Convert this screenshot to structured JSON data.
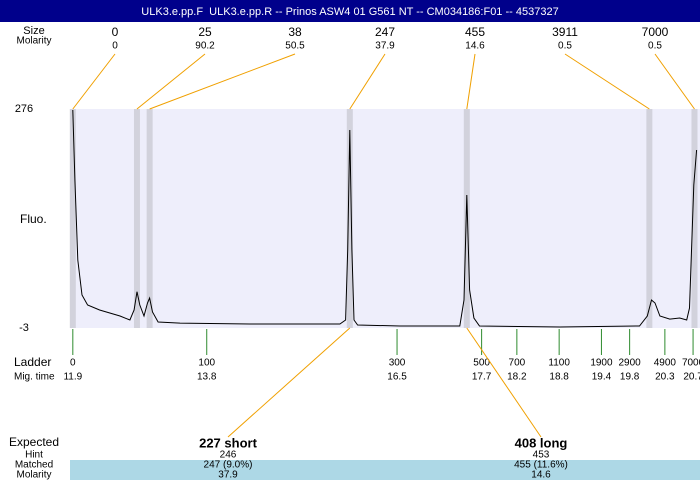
{
  "header": {
    "title": "ULK3.e.pp.F  ULK3.e.pp.R -- Prinos ASW4 01 G561 NT -- CM034186:F01 -- 4537327"
  },
  "chart_data": {
    "type": "line",
    "y_label": "Fluo.",
    "ylim": [
      -3,
      276
    ],
    "yticks": [
      276,
      -3
    ],
    "xlim": [
      11.86,
      20.77
    ],
    "peak_row_labels": [
      "Size",
      "Molarity"
    ],
    "peaks": {
      "size": [
        0,
        25,
        38,
        247,
        455,
        3911,
        7000
      ],
      "molarity": [
        0,
        90.2,
        50.5,
        37.9,
        14.6,
        0.5,
        0.5
      ],
      "mig_time": [
        11.9,
        12.81,
        12.99,
        15.83,
        17.49,
        20.08,
        20.72
      ]
    },
    "ladder_labels": [
      "Ladder",
      "Mig. time"
    ],
    "ladder": {
      "size": [
        0,
        100,
        300,
        500,
        700,
        1100,
        1900,
        2900,
        4900,
        7000
      ],
      "mig_time": [
        11.9,
        13.8,
        16.5,
        17.7,
        18.2,
        18.8,
        19.4,
        19.8,
        20.3,
        20.7
      ]
    },
    "series": [
      {
        "color": "#000000",
        "x": [
          11.9,
          11.93,
          11.97,
          12.03,
          12.11,
          12.28,
          12.57,
          12.71,
          12.77,
          12.81,
          12.85,
          12.91,
          12.96,
          12.99,
          13.03,
          13.11,
          13.42,
          14.41,
          15.69,
          15.77,
          15.8,
          15.83,
          15.86,
          15.89,
          15.94,
          16.54,
          17.39,
          17.45,
          17.49,
          17.53,
          17.59,
          17.67,
          18.81,
          19.94,
          20.05,
          20.11,
          20.16,
          20.23,
          20.37,
          20.51,
          20.61,
          20.65,
          20.71,
          20.75
        ],
        "values": [
          274.7,
          185.5,
          83.6,
          39.0,
          26.3,
          19.9,
          12.3,
          7.2,
          19.9,
          43.3,
          26.3,
          12.3,
          28.9,
          35.2,
          17.4,
          4.6,
          3.3,
          2.1,
          2.1,
          7.2,
          96.4,
          249.2,
          96.4,
          7.2,
          0.8,
          -0.5,
          -0.5,
          32.7,
          166.4,
          45.4,
          9.7,
          -0.5,
          -1.7,
          -0.5,
          12.3,
          32.7,
          28.9,
          12.3,
          8.4,
          9.7,
          7.2,
          22.5,
          179.2,
          223.8
        ]
      }
    ],
    "expected": {
      "label": "Expected",
      "row_labels": [
        "Hint",
        "Matched",
        "Molarity"
      ],
      "items": [
        {
          "name": "227 short",
          "hint": 246,
          "matched": "247 (9.0%)",
          "molarity": 37.9
        },
        {
          "name": "408 long",
          "hint": 453,
          "matched": "455 (11.6%)",
          "molarity": 14.6
        }
      ]
    }
  }
}
